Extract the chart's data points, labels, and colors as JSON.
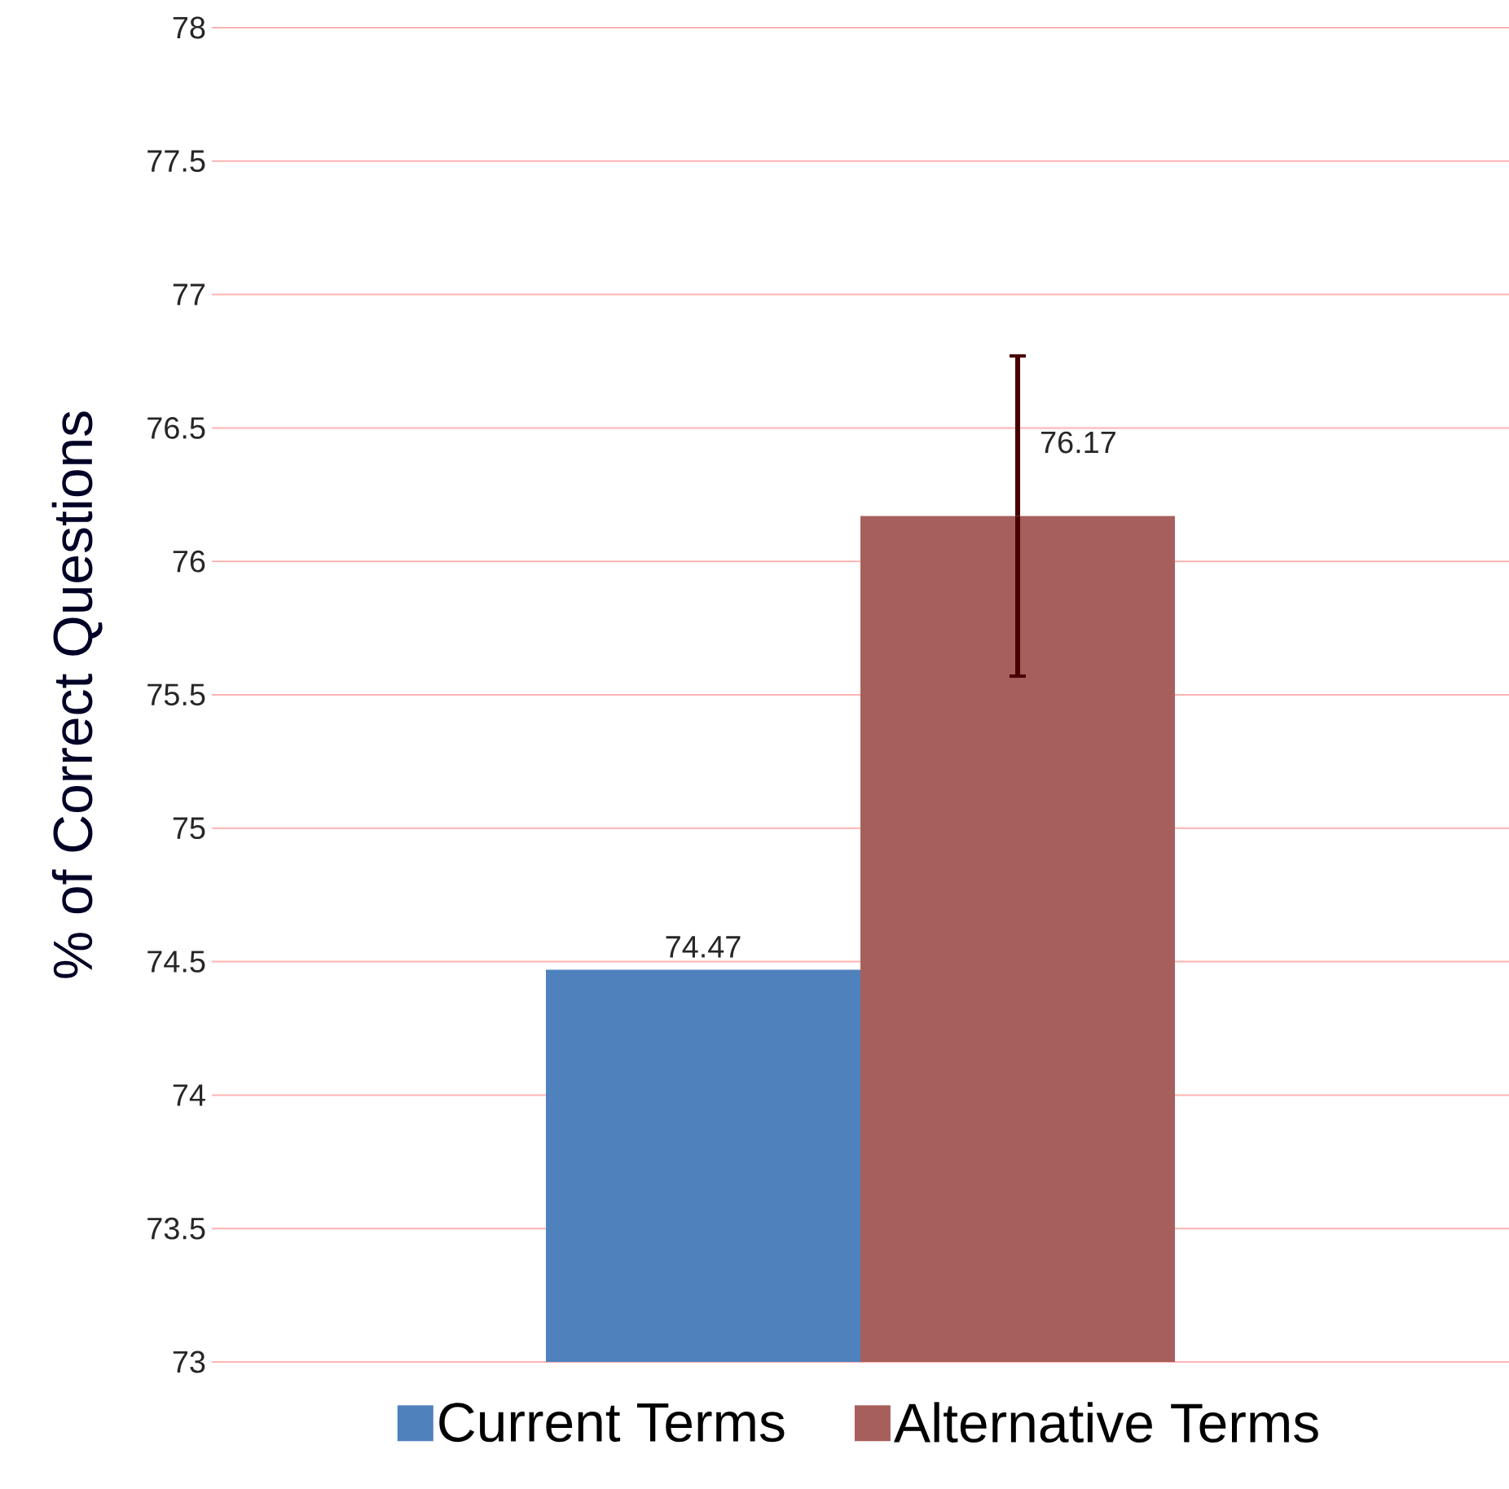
{
  "chart_data": {
    "type": "bar",
    "ylabel": "% of Correct Questions",
    "categories": [
      null
    ],
    "series": [
      {
        "name": "Current Terms",
        "color": "#4f81bd",
        "values": [
          74.47
        ]
      },
      {
        "name": "Alternative Terms",
        "color": "#a75f5c",
        "values": [
          76.17
        ],
        "errors": [
          0.6
        ]
      }
    ],
    "ylim": [
      73,
      78
    ],
    "yticks": [
      73,
      73.5,
      74,
      74.5,
      75,
      75.5,
      76,
      76.5,
      77,
      77.5,
      78
    ],
    "grid": "y",
    "legend": "bottom",
    "data_labels": true
  }
}
